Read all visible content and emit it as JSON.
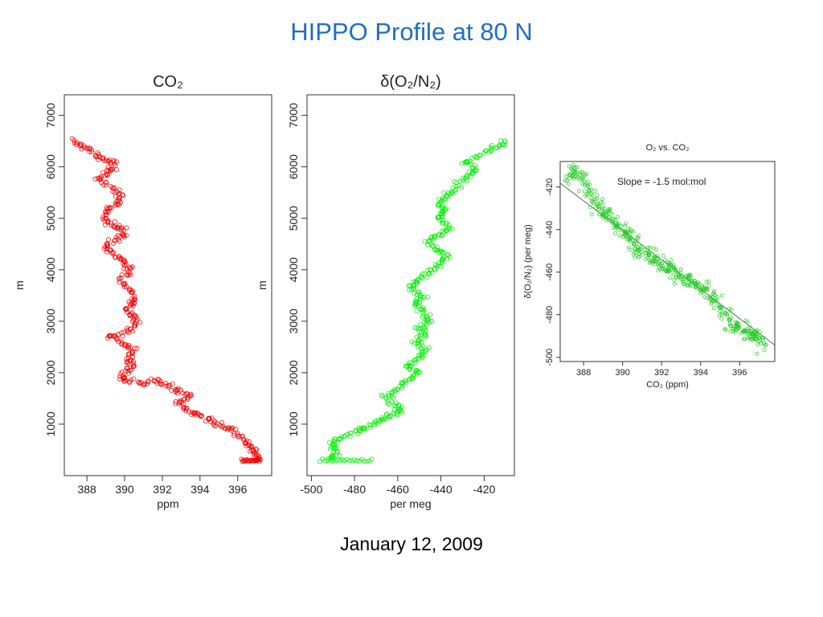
{
  "page": {
    "title": "HIPPO Profile at 80 N",
    "date": "January 12, 2009"
  },
  "chart_data": [
    {
      "type": "scatter",
      "title": "CO₂",
      "xlabel": "ppm",
      "ylabel": "m",
      "xlim": [
        386.8,
        397.8
      ],
      "ylim": [
        0,
        7400
      ],
      "xticks": [
        "388",
        "390",
        "392",
        "394",
        "396"
      ],
      "yticks": [
        "1000",
        "2000",
        "3000",
        "4000",
        "5000",
        "6000",
        "7000"
      ],
      "color": "#ee0000",
      "profile": [
        [
          387.2,
          6500
        ],
        [
          387.8,
          6400
        ],
        [
          388.4,
          6250
        ],
        [
          388.9,
          6150
        ],
        [
          389.5,
          6050
        ],
        [
          389.1,
          5900
        ],
        [
          388.6,
          5800
        ],
        [
          389.3,
          5600
        ],
        [
          389.8,
          5450
        ],
        [
          389.6,
          5250
        ],
        [
          389.0,
          5100
        ],
        [
          388.9,
          4950
        ],
        [
          389.6,
          4850
        ],
        [
          390.1,
          4750
        ],
        [
          389.5,
          4600
        ],
        [
          388.9,
          4450
        ],
        [
          389.4,
          4300
        ],
        [
          390.0,
          4150
        ],
        [
          390.3,
          4000
        ],
        [
          389.8,
          3800
        ],
        [
          390.3,
          3600
        ],
        [
          390.6,
          3400
        ],
        [
          390.1,
          3250
        ],
        [
          390.4,
          3100
        ],
        [
          390.6,
          2950
        ],
        [
          390.2,
          2800
        ],
        [
          389.2,
          2700
        ],
        [
          389.8,
          2600
        ],
        [
          390.5,
          2450
        ],
        [
          390.2,
          2300
        ],
        [
          390.4,
          2150
        ],
        [
          390.0,
          2000
        ],
        [
          389.9,
          1850
        ],
        [
          390.8,
          1800
        ],
        [
          391.6,
          1850
        ],
        [
          392.2,
          1750
        ],
        [
          392.8,
          1650
        ],
        [
          393.5,
          1550
        ],
        [
          392.8,
          1400
        ],
        [
          393.4,
          1250
        ],
        [
          394.0,
          1150
        ],
        [
          394.6,
          1050
        ],
        [
          395.2,
          950
        ],
        [
          395.8,
          850
        ],
        [
          396.3,
          700
        ],
        [
          396.7,
          550
        ],
        [
          396.9,
          400
        ],
        [
          397.1,
          300
        ]
      ]
    },
    {
      "type": "scatter",
      "title": "δ(O₂/N₂)",
      "xlabel": "per meg",
      "ylabel": "m",
      "xlim": [
        -502,
        -406
      ],
      "ylim": [
        0,
        7400
      ],
      "xticks": [
        "-500",
        "-480",
        "-460",
        "-440",
        "-420"
      ],
      "yticks": [
        "1000",
        "2000",
        "3000",
        "4000",
        "5000",
        "6000",
        "7000"
      ],
      "color": "#00ee00",
      "profile": [
        [
          -492,
          300
        ],
        [
          -488,
          450
        ],
        [
          -491,
          600
        ],
        [
          -486,
          750
        ],
        [
          -479,
          850
        ],
        [
          -474,
          950
        ],
        [
          -468,
          1050
        ],
        [
          -464,
          1150
        ],
        [
          -458,
          1250
        ],
        [
          -462,
          1400
        ],
        [
          -466,
          1550
        ],
        [
          -460,
          1700
        ],
        [
          -455,
          1850
        ],
        [
          -450,
          2000
        ],
        [
          -456,
          2150
        ],
        [
          -450,
          2300
        ],
        [
          -446,
          2450
        ],
        [
          -452,
          2600
        ],
        [
          -448,
          2750
        ],
        [
          -450,
          2900
        ],
        [
          -445,
          3050
        ],
        [
          -449,
          3200
        ],
        [
          -452,
          3350
        ],
        [
          -448,
          3500
        ],
        [
          -454,
          3650
        ],
        [
          -451,
          3800
        ],
        [
          -446,
          3950
        ],
        [
          -441,
          4100
        ],
        [
          -437,
          4250
        ],
        [
          -442,
          4400
        ],
        [
          -446,
          4550
        ],
        [
          -440,
          4700
        ],
        [
          -436,
          4850
        ],
        [
          -442,
          5000
        ],
        [
          -438,
          5150
        ],
        [
          -441,
          5300
        ],
        [
          -437,
          5450
        ],
        [
          -433,
          5600
        ],
        [
          -428,
          5800
        ],
        [
          -424,
          5950
        ],
        [
          -429,
          6100
        ],
        [
          -420,
          6250
        ],
        [
          -414,
          6400
        ],
        [
          -410,
          6500
        ]
      ]
    },
    {
      "type": "scatter",
      "title": "O₂ vs. CO₂",
      "xlabel": "CO₂ (ppm)",
      "ylabel": "δ(O₂/N₂) (per meg)",
      "xlim": [
        386.8,
        397.8
      ],
      "ylim": [
        -502,
        -408
      ],
      "xticks": [
        "388",
        "390",
        "392",
        "394",
        "396"
      ],
      "yticks": [
        "-500",
        "-480",
        "-460",
        "-440",
        "-420"
      ],
      "annotation": "Slope = -1.5 mol:mol",
      "color": "#22cc22",
      "fit_line": [
        [
          386.8,
          -418.2
        ],
        [
          397.8,
          -494.3
        ]
      ],
      "profile": [
        [
          387.2,
          -415
        ],
        [
          387.6,
          -412
        ],
        [
          388.1,
          -420
        ],
        [
          388.6,
          -427
        ],
        [
          389.1,
          -432
        ],
        [
          389.6,
          -437
        ],
        [
          390.1,
          -441
        ],
        [
          390.5,
          -445
        ],
        [
          390.9,
          -449
        ],
        [
          391.4,
          -451
        ],
        [
          391.9,
          -455
        ],
        [
          392.4,
          -458
        ],
        [
          392.9,
          -462
        ],
        [
          393.4,
          -464
        ],
        [
          393.9,
          -467
        ],
        [
          394.4,
          -470
        ],
        [
          394.9,
          -476
        ],
        [
          395.5,
          -483
        ],
        [
          396.0,
          -487
        ],
        [
          396.5,
          -489
        ],
        [
          396.9,
          -491
        ],
        [
          397.2,
          -494
        ]
      ]
    }
  ]
}
